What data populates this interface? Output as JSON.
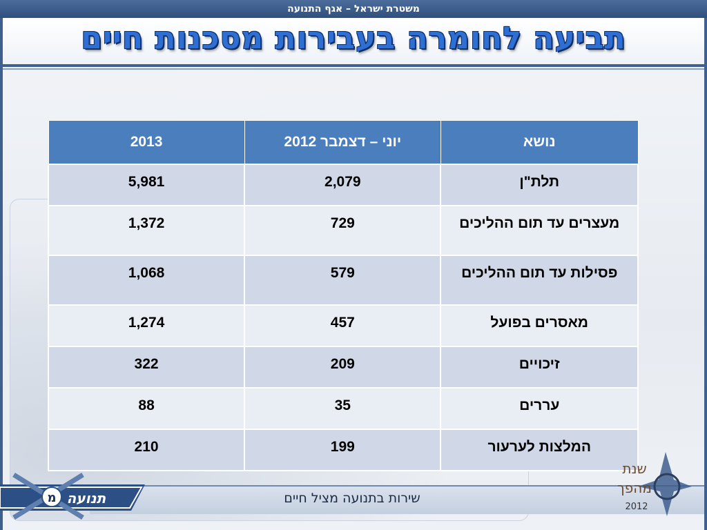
{
  "header": {
    "org_line": "משטרת ישראל – אגף התנועה",
    "title": "תביעה לחומרה בעבירות מסכנות חיים"
  },
  "table": {
    "columns": [
      "נושא",
      "יוני – דצמבר 2012",
      "2013"
    ],
    "rows": [
      {
        "topic": "תלת\"ן",
        "v2012": "2,079",
        "v2013": "5,981"
      },
      {
        "topic": "מעצרים עד תום ההליכים",
        "v2012": "729",
        "v2013": "1,372"
      },
      {
        "topic": "פסילות עד תום ההליכים",
        "v2012": "579",
        "v2013": "1,068"
      },
      {
        "topic": "מאסרים בפועל",
        "v2012": "457",
        "v2013": "1,274"
      },
      {
        "topic": "זיכויים",
        "v2012": "209",
        "v2013": "322"
      },
      {
        "topic": "עררים",
        "v2012": "35",
        "v2013": "88"
      },
      {
        "topic": "המלצות לערעור",
        "v2012": "199",
        "v2013": "210"
      }
    ]
  },
  "footer": {
    "tagline": "שירות בתנועה מציל חיים",
    "logo_left_text": "תנועה",
    "logo_left_letter": "מ",
    "logo_right_line1": "שנת",
    "logo_right_line2": "מהפך",
    "logo_right_year": "2012"
  },
  "colors": {
    "accent": "#4a7ebd",
    "title": "#2f6fd4",
    "frame": "#3f5f8e"
  }
}
